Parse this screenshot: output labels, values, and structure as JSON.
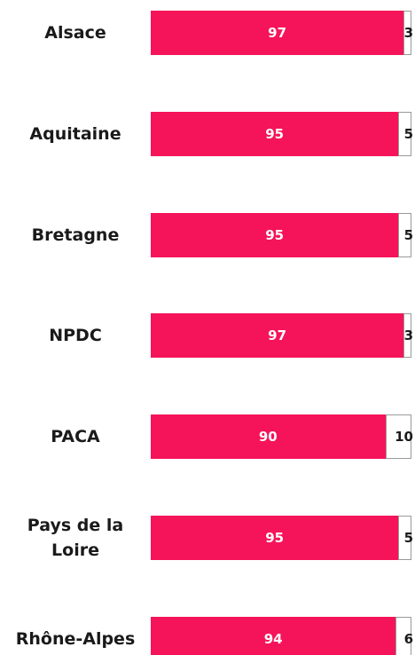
{
  "chart_data": {
    "type": "bar",
    "orientation": "horizontal",
    "stacked": true,
    "categories": [
      "Alsace",
      "Aquitaine",
      "Bretagne",
      "NPDC",
      "PACA",
      "Pays de la Loire",
      "Rhône-Alpes"
    ],
    "series": [
      {
        "color": "#f5145a",
        "values": [
          97,
          95,
          95,
          97,
          90,
          95,
          94
        ]
      },
      {
        "color": "#ffffff",
        "values": [
          3,
          5,
          5,
          3,
          10,
          5,
          6
        ]
      }
    ]
  }
}
